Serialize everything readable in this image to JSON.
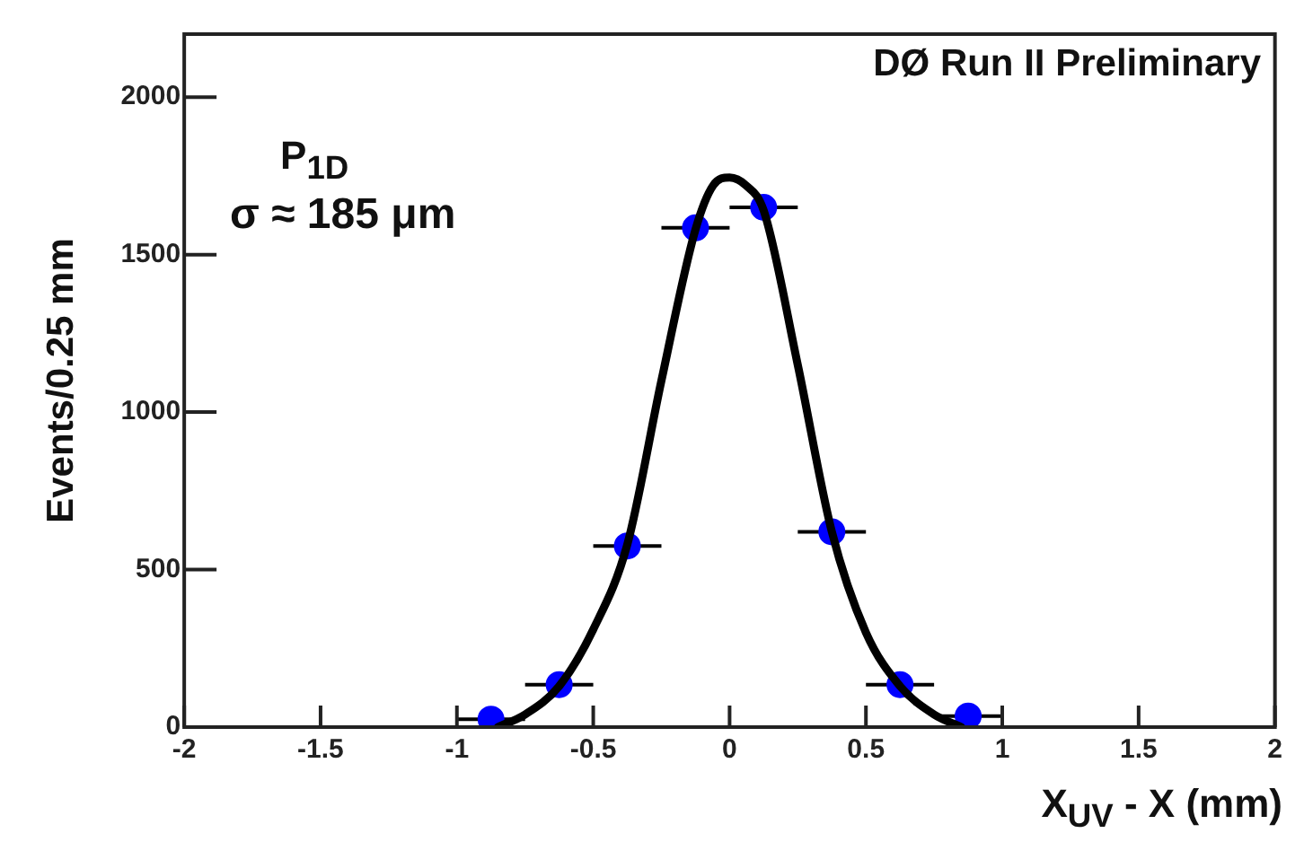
{
  "chart_data": {
    "type": "scatter",
    "xlabel": "X$_{UV}$ - X (mm)",
    "ylabel": "Events/0.25 mm",
    "annotations": [
      "DØ Run II Preliminary",
      "P$_{1D}$",
      "σ ≈ 185 μm"
    ],
    "xlim": [
      -2,
      2
    ],
    "xticks": [
      -2,
      -1.5,
      -1,
      -0.5,
      0,
      0.5,
      1,
      1.5,
      2
    ],
    "ylim": [
      0,
      2200
    ],
    "yticks": [
      0,
      500,
      1000,
      1500,
      2000
    ],
    "series": [
      {
        "type": "scatter",
        "color": "#0000ff",
        "marker": "circle",
        "x": [
          -0.875,
          -0.625,
          -0.375,
          -0.125,
          0.125,
          0.375,
          0.625,
          0.875
        ],
        "values": [
          25,
          135,
          575,
          1585,
          1650,
          620,
          135,
          35
        ],
        "xerrors": [
          0.125,
          0.125,
          0.125,
          0.125,
          0.125,
          0.125,
          0.125,
          0.125
        ]
      },
      {
        "type": "line",
        "color": "#000000",
        "marker": "none",
        "x": [
          -0.85,
          -0.75,
          -0.625,
          -0.5,
          -0.375,
          -0.25,
          -0.125,
          -0.06,
          0,
          0.06,
          0.125,
          0.25,
          0.375,
          0.5,
          0.625,
          0.75,
          0.85
        ],
        "values": [
          0,
          40,
          130,
          310,
          580,
          1100,
          1580,
          1720,
          1745,
          1720,
          1640,
          1150,
          620,
          300,
          130,
          40,
          0
        ]
      }
    ]
  }
}
